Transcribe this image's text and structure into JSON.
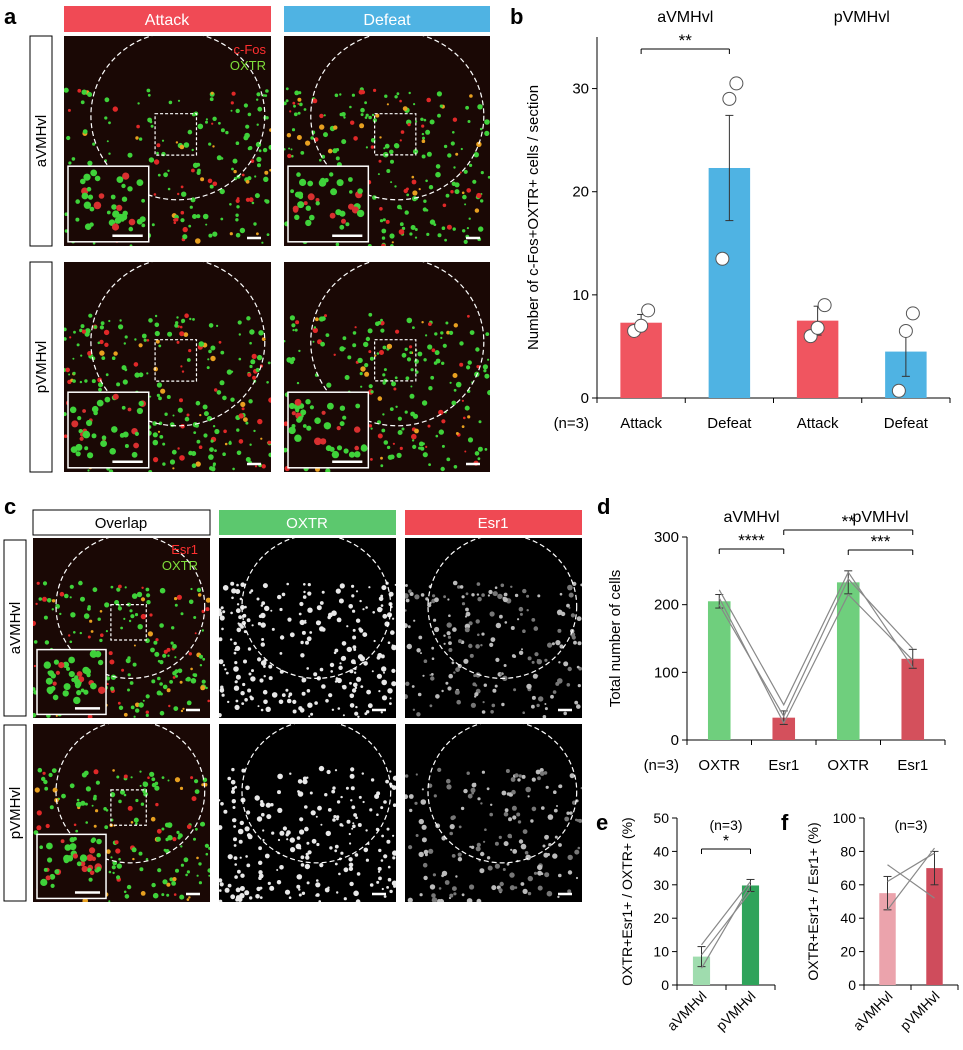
{
  "panel_labels": {
    "a": "a",
    "b": "b",
    "c": "c",
    "d": "d",
    "e": "e",
    "f": "f"
  },
  "panel_a": {
    "col_headers": [
      "Attack",
      "Defeat"
    ],
    "col_colors": [
      "#f04a55",
      "#4fb3e3"
    ],
    "row_labels": [
      "aVMHvl",
      "pVMHvl"
    ],
    "legend": [
      "c-Fos",
      "OXTR"
    ],
    "legend_colors": [
      "#ff3030",
      "#7ddc3a"
    ]
  },
  "panel_c": {
    "col_headers": [
      "Overlap",
      "OXTR",
      "Esr1"
    ],
    "col_colors": [
      "#ffffff",
      "#5cc86e",
      "#ef4953"
    ],
    "row_labels": [
      "aVMHvl",
      "pVMHvl"
    ],
    "legend": [
      "Esr1",
      "OXTR"
    ]
  },
  "chart_data": [
    {
      "id": "b",
      "type": "bar",
      "groups": [
        "aVMHvl",
        "pVMHvl"
      ],
      "n_label": "(n=3)",
      "categories": [
        "Attack",
        "Defeat",
        "Attack",
        "Defeat"
      ],
      "values": [
        7.3,
        22.3,
        7.5,
        4.5
      ],
      "errors": [
        0.8,
        5.1,
        1.4,
        2.4
      ],
      "colors": [
        "#f05560",
        "#4fb3e3",
        "#f05560",
        "#4fb3e3"
      ],
      "points": [
        [
          6.5,
          7.0,
          8.5
        ],
        [
          13.5,
          29.0,
          30.5
        ],
        [
          6.0,
          6.8,
          9.0
        ],
        [
          0.7,
          6.5,
          8.2
        ]
      ],
      "ylabel": "Number of c-Fos+OXTR+ cells / section",
      "ylim": [
        0,
        35
      ],
      "yticks": [
        0,
        10,
        20,
        30
      ],
      "significance": [
        {
          "from": 0,
          "to": 1,
          "label": "**"
        }
      ]
    },
    {
      "id": "d",
      "type": "bar",
      "groups": [
        "aVMHvl",
        "pVMHvl"
      ],
      "n_label": "(n=3)",
      "categories": [
        "OXTR",
        "Esr1",
        "OXTR",
        "Esr1"
      ],
      "values": [
        205,
        33,
        233,
        120
      ],
      "errors": [
        10,
        10,
        17,
        14
      ],
      "colors": [
        "#6fcf7d",
        "#d4505c",
        "#6fcf7d",
        "#d4505c"
      ],
      "lines": [
        [
          222,
          52,
          248,
          107
        ],
        [
          200,
          35,
          238,
          135
        ],
        [
          210,
          25,
          215,
          118
        ]
      ],
      "ylabel": "Total number of cells",
      "ylim": [
        0,
        300
      ],
      "yticks": [
        0,
        100,
        200,
        300
      ],
      "significance": [
        {
          "from": 0,
          "to": 1,
          "label": "****"
        },
        {
          "from": 1,
          "to": 3,
          "label": "**"
        },
        {
          "from": 2,
          "to": 3,
          "label": "***"
        }
      ]
    },
    {
      "id": "e",
      "type": "bar",
      "n_label": "(n=3)",
      "categories": [
        "aVMHvl",
        "pVMHvl"
      ],
      "values": [
        8.5,
        29.8
      ],
      "errors": [
        3.0,
        1.8
      ],
      "colors": [
        "#9fdcae",
        "#2fa35a"
      ],
      "lines": [
        [
          5,
          30
        ],
        [
          12,
          31
        ],
        [
          9,
          28
        ]
      ],
      "ylabel": "OXTR+Esr1+ / OXTR+ (%)",
      "ylim": [
        0,
        50
      ],
      "yticks": [
        0,
        10,
        20,
        30,
        40,
        50
      ],
      "significance": [
        {
          "from": 0,
          "to": 1,
          "label": "*"
        }
      ]
    },
    {
      "id": "f",
      "type": "bar",
      "n_label": "(n=3)",
      "categories": [
        "aVMHvl",
        "pVMHvl"
      ],
      "values": [
        55,
        70
      ],
      "errors": [
        10,
        10
      ],
      "colors": [
        "#eba3ac",
        "#cf4c5c"
      ],
      "lines": [
        [
          72,
          52
        ],
        [
          62,
          79
        ],
        [
          45,
          82
        ]
      ],
      "ylabel": "OXTR+Esr1+ / Esr1+ (%)",
      "ylim": [
        0,
        100
      ],
      "yticks": [
        0,
        20,
        40,
        60,
        80,
        100
      ]
    }
  ]
}
